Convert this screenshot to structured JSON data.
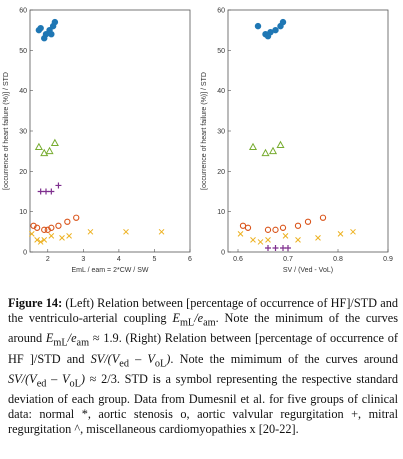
{
  "figure": {
    "panels": [
      {
        "id": "left",
        "ylabel": "[occurrence of heart failure (%)] / STD",
        "xlabel": "EmL / eam = 2*CW / SW",
        "xticks": [
          "2",
          "3",
          "4",
          "5",
          "6"
        ],
        "yticks": [
          "0",
          "10",
          "20",
          "30",
          "40",
          "50",
          "60"
        ]
      },
      {
        "id": "right",
        "ylabel": "[occurrence of heart failure (%)] / STD",
        "xlabel": "SV / (Ved - VoL)",
        "xticks": [
          "0.6",
          "0.7",
          "0.8",
          "0.9"
        ],
        "yticks": [
          "0",
          "10",
          "20",
          "30",
          "40",
          "50",
          "60"
        ]
      }
    ]
  },
  "chart_data": [
    {
      "type": "scatter",
      "title": "",
      "xlabel": "EmL / eam = 2*CW / SW",
      "ylabel": "[occurrence of heart failure (%)] / STD",
      "xlim": [
        1.5,
        6
      ],
      "ylim": [
        0,
        60
      ],
      "grid": false,
      "series": [
        {
          "marker": "*",
          "color": "#1f77b4",
          "points": [
            [
              1.75,
              55
            ],
            [
              1.95,
              54
            ],
            [
              2.05,
              55
            ],
            [
              2.15,
              56
            ],
            [
              2.2,
              57
            ],
            [
              1.9,
              53
            ],
            [
              2.1,
              54
            ],
            [
              1.8,
              55.5
            ]
          ]
        },
        {
          "marker": "^",
          "color": "#77ac30",
          "points": [
            [
              1.75,
              26
            ],
            [
              1.9,
              24.5
            ],
            [
              2.05,
              25
            ],
            [
              2.2,
              27
            ]
          ]
        },
        {
          "marker": "+",
          "color": "#7e2f8e",
          "points": [
            [
              1.8,
              15
            ],
            [
              1.95,
              15
            ],
            [
              2.1,
              15
            ],
            [
              2.3,
              16.5
            ]
          ]
        },
        {
          "marker": "o",
          "color": "#d95319",
          "points": [
            [
              1.6,
              6.5
            ],
            [
              1.7,
              6
            ],
            [
              1.9,
              5.5
            ],
            [
              2.0,
              5.5
            ],
            [
              2.1,
              6
            ],
            [
              2.3,
              6.5
            ],
            [
              2.55,
              7.5
            ],
            [
              2.8,
              8.5
            ]
          ]
        },
        {
          "marker": "x",
          "color": "#edb120",
          "points": [
            [
              1.55,
              4.5
            ],
            [
              1.7,
              3
            ],
            [
              1.8,
              2.5
            ],
            [
              1.9,
              3
            ],
            [
              2.1,
              4
            ],
            [
              2.4,
              3.5
            ],
            [
              2.6,
              4
            ],
            [
              3.2,
              5
            ],
            [
              4.2,
              5
            ],
            [
              5.2,
              5
            ]
          ]
        }
      ]
    },
    {
      "type": "scatter",
      "title": "",
      "xlabel": "SV / (Ved - VoL)",
      "ylabel": "[occurrence of heart failure (%)] / STD",
      "xlim": [
        0.58,
        0.9
      ],
      "ylim": [
        0,
        60
      ],
      "grid": false,
      "series": [
        {
          "marker": "*",
          "color": "#1f77b4",
          "points": [
            [
              0.64,
              56
            ],
            [
              0.655,
              54
            ],
            [
              0.665,
              54.5
            ],
            [
              0.675,
              55
            ],
            [
              0.685,
              56
            ],
            [
              0.69,
              57
            ],
            [
              0.66,
              53.5
            ]
          ]
        },
        {
          "marker": "^",
          "color": "#77ac30",
          "points": [
            [
              0.63,
              26
            ],
            [
              0.655,
              24.5
            ],
            [
              0.67,
              25
            ],
            [
              0.685,
              26.5
            ]
          ]
        },
        {
          "marker": "+",
          "color": "#7e2f8e",
          "points": [
            [
              0.66,
              1
            ],
            [
              0.675,
              1
            ],
            [
              0.69,
              1
            ],
            [
              0.7,
              1
            ]
          ]
        },
        {
          "marker": "o",
          "color": "#d95319",
          "points": [
            [
              0.61,
              6.5
            ],
            [
              0.62,
              6
            ],
            [
              0.66,
              5.5
            ],
            [
              0.675,
              5.5
            ],
            [
              0.69,
              6
            ],
            [
              0.72,
              6.5
            ],
            [
              0.74,
              7.5
            ],
            [
              0.77,
              8.5
            ]
          ]
        },
        {
          "marker": "x",
          "color": "#edb120",
          "points": [
            [
              0.605,
              4.5
            ],
            [
              0.63,
              3
            ],
            [
              0.645,
              2.5
            ],
            [
              0.66,
              3
            ],
            [
              0.695,
              4
            ],
            [
              0.72,
              3
            ],
            [
              0.76,
              3.5
            ],
            [
              0.805,
              4.5
            ],
            [
              0.83,
              5
            ]
          ]
        }
      ]
    }
  ],
  "caption": {
    "label": "Figure 14:",
    "text": "(Left) Relation between [percentage of occurrence of HF]/STD and the ventriculo-arterial coupling E_mL/e_am. Note the minimum of the curves around E_mL/e_am ≈ 1.9. (Right) Relation between [percentage of occurrence of HF ]/STD and SV/(V_ed – V_oL). Note the mimimum of the curves around SV/(V_ed – V_oL) ≈ 2/3. STD is a symbol representing the respective standard deviation of each group. Data from Dumesnil et al. for five groups of clinical data: normal *, aortic stenosis o, aortic valvular regurgitation +, mitral regurgitation ^, miscellaneous cardiomyopathies x [20-22].",
    "p1": "(Left) Relation between [percentage of occurrence of HF]/STD and the ventriculo-arterial coupling ",
    "E": "E",
    "mL": "mL",
    "slash_e": "/e",
    "am": "am",
    "p2": ". Note the minimum of the curves around ",
    "approx1": " ≈ 1.9. (Right) Relation between [percentage of occurrence of HF ]/STD and ",
    "sv": "SV/(V",
    "ed": "ed",
    "minus": " – V",
    "oL": "oL",
    "close": ")",
    "p3": ". Note the mimimum of the curves around ",
    "approx2": " ≈ 2/3. STD is a symbol representing the respective standard deviation of each group. Data from Dumesnil et al. for five groups of clinical data: normal *, aortic stenosis o, aortic valvular regurgitation +, mitral regurgitation ^, miscellaneous cardiomyopathies x [20-22]."
  }
}
